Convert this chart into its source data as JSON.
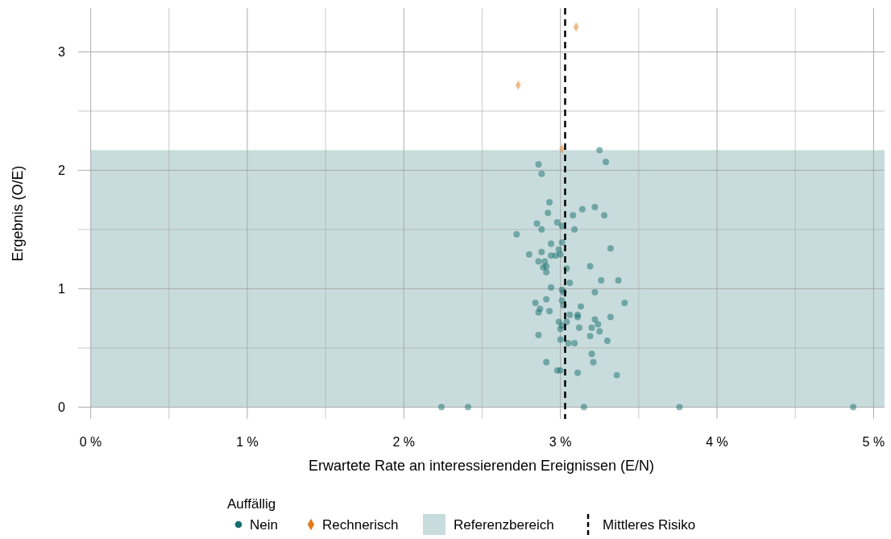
{
  "chart_data": {
    "type": "scatter",
    "xlabel": "Erwartete Rate an interessierenden Ereignissen (E/N)",
    "ylabel": "Ergebnis (O/E)",
    "legend_title": "Auffällig",
    "legend": "bottom",
    "grid": true,
    "xlim": [
      -0.08,
      5.07
    ],
    "ylim": [
      -0.1,
      3.37
    ],
    "xticks": [
      {
        "value": 0,
        "label": "0 %"
      },
      {
        "value": 0.5,
        "label": null
      },
      {
        "value": 1,
        "label": "1 %"
      },
      {
        "value": 1.5,
        "label": null
      },
      {
        "value": 2,
        "label": "2 %"
      },
      {
        "value": 2.5,
        "label": null
      },
      {
        "value": 3,
        "label": "3 %"
      },
      {
        "value": 3.5,
        "label": null
      },
      {
        "value": 4,
        "label": "4 %"
      },
      {
        "value": 4.5,
        "label": null
      },
      {
        "value": 5,
        "label": "5 %"
      }
    ],
    "yticks": [
      0,
      {
        "value": 0.5,
        "label": null
      },
      1,
      {
        "value": 1.5,
        "label": null
      },
      2,
      {
        "value": 2.5,
        "label": null
      },
      3
    ],
    "bands": [
      {
        "axis": "y",
        "from": 0,
        "to": 2.17,
        "label": "Referenzbereich",
        "color": "#c8dcdd"
      }
    ],
    "ref_lines": [
      {
        "axis": "x",
        "value": 3.03,
        "label": "Mittleres Risiko",
        "color": "#000000",
        "line_style": "dashed"
      }
    ],
    "series": [
      {
        "name": "Nein",
        "color": "#17706e",
        "marker": "circle",
        "x": [
          3.25,
          2.86,
          3.29,
          2.88,
          2.93,
          3.14,
          2.92,
          3.22,
          3.08,
          3.28,
          2.85,
          2.98,
          2.88,
          3.01,
          3.09,
          2.72,
          2.94,
          3.01,
          3.32,
          2.8,
          2.88,
          2.99,
          2.94,
          2.97,
          3.0,
          2.86,
          2.9,
          3.19,
          2.89,
          2.91,
          2.91,
          3.04,
          3.06,
          3.26,
          3.37,
          2.94,
          3.01,
          3.02,
          3.22,
          2.84,
          2.91,
          3.01,
          3.02,
          3.41,
          3.13,
          2.87,
          2.86,
          2.93,
          3.06,
          3.11,
          3.11,
          3.32,
          3.22,
          3.24,
          2.99,
          3.04,
          3.01,
          3.0,
          3.12,
          3.2,
          3.25,
          2.86,
          3.19,
          3.3,
          3.0,
          3.05,
          3.09,
          3.2,
          2.91,
          3.21,
          2.98,
          3.0,
          3.11,
          3.36,
          2.24,
          2.41,
          3.15,
          3.76,
          4.87
        ],
        "values": [
          2.17,
          2.05,
          2.07,
          1.97,
          1.73,
          1.67,
          1.64,
          1.69,
          1.62,
          1.62,
          1.55,
          1.56,
          1.5,
          1.53,
          1.5,
          1.46,
          1.38,
          1.39,
          1.34,
          1.29,
          1.31,
          1.33,
          1.28,
          1.28,
          1.29,
          1.23,
          1.23,
          1.19,
          1.18,
          1.19,
          1.14,
          1.17,
          1.05,
          1.07,
          1.07,
          1.01,
          0.99,
          0.97,
          0.97,
          0.88,
          0.91,
          0.9,
          0.86,
          0.88,
          0.85,
          0.83,
          0.8,
          0.81,
          0.78,
          0.78,
          0.76,
          0.76,
          0.74,
          0.7,
          0.72,
          0.72,
          0.69,
          0.66,
          0.67,
          0.67,
          0.64,
          0.61,
          0.6,
          0.56,
          0.57,
          0.54,
          0.54,
          0.45,
          0.38,
          0.38,
          0.31,
          0.31,
          0.29,
          0.27,
          0,
          0,
          0,
          0,
          0
        ]
      },
      {
        "name": "Rechnerisch",
        "color": "#e07b1a",
        "marker": "diamond",
        "x": [
          3.1,
          2.73,
          3.01
        ],
        "values": [
          3.21,
          2.72,
          2.18
        ]
      }
    ]
  }
}
